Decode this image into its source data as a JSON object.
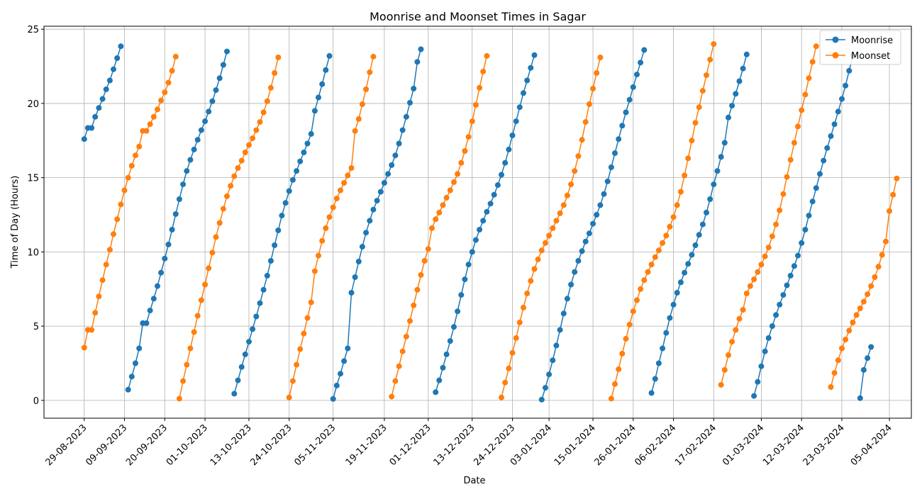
{
  "chart_data": {
    "type": "line",
    "title": "Moonrise and Moonset Times in Sagar",
    "xlabel": "Date",
    "ylabel": "Time of Day (Hours)",
    "x_ticks": [
      "29-08-2023",
      "09-09-2023",
      "20-09-2023",
      "01-10-2023",
      "13-10-2023",
      "24-10-2023",
      "05-11-2023",
      "19-11-2023",
      "01-12-2023",
      "13-12-2023",
      "24-12-2023",
      "03-01-2024",
      "15-01-2024",
      "26-01-2024",
      "06-02-2024",
      "17-02-2024",
      "01-03-2024",
      "12-03-2024",
      "23-03-2024",
      "05-04-2024"
    ],
    "y_ticks": [
      0,
      5,
      10,
      15,
      20,
      25
    ],
    "ylim": [
      -1.2,
      25.2
    ],
    "xlim": [
      "2023-08-18",
      "2024-04-11"
    ],
    "grid": true,
    "legend_position": "top-right",
    "series": [
      {
        "name": "Moonrise",
        "color": "#1f77b4",
        "segments": [
          {
            "start": "2023-08-29",
            "values": [
              17.6,
              18.35,
              18.35,
              19.1,
              19.7,
              20.3,
              20.95,
              21.55,
              22.3,
              23.05,
              23.85
            ]
          },
          {
            "start": "2023-09-10",
            "values": [
              0.72,
              1.6,
              2.5,
              3.5,
              5.2,
              5.2,
              6.05,
              6.85,
              7.7,
              8.6,
              9.55,
              10.5,
              11.5,
              12.55,
              13.55,
              14.55,
              15.45,
              16.2,
              16.9,
              17.55,
              18.2,
              18.8,
              19.45,
              20.15,
              20.9,
              21.7,
              22.6,
              23.5
            ]
          },
          {
            "start": "2023-10-09",
            "values": [
              0.45,
              1.35,
              2.25,
              3.1,
              3.95,
              4.8,
              5.65,
              6.55,
              7.45,
              8.4,
              9.4,
              10.45,
              11.45,
              12.45,
              13.3,
              14.1,
              14.85,
              15.45,
              16.1,
              16.7,
              17.3,
              17.95,
              19.5,
              20.4,
              21.3,
              22.25,
              23.2
            ]
          },
          {
            "start": "2023-11-05",
            "values": [
              0.1,
              1.0,
              1.8,
              2.65,
              3.5,
              7.25,
              8.3,
              9.35,
              10.35,
              11.3,
              12.1,
              12.85,
              13.45,
              14.05,
              14.65,
              15.25,
              15.85,
              16.5,
              17.3,
              18.2,
              19.1,
              20.05,
              21.0,
              22.8,
              23.65
            ]
          },
          {
            "start": "2023-12-03",
            "values": [
              0.55,
              1.35,
              2.2,
              3.1,
              4.0,
              4.95,
              6.0,
              7.1,
              8.15,
              9.15,
              10.0,
              10.8,
              11.5,
              12.1,
              12.7,
              13.25,
              13.85,
              14.5,
              15.2,
              16.0,
              16.9,
              17.85,
              18.8,
              19.75,
              20.7,
              21.55,
              22.4,
              23.25
            ]
          },
          {
            "start": "2024-01-01",
            "values": [
              0.05,
              0.85,
              1.75,
              2.7,
              3.7,
              4.75,
              5.85,
              6.85,
              7.8,
              8.65,
              9.4,
              10.05,
              10.7,
              11.25,
              11.9,
              12.5,
              13.15,
              13.9,
              14.75,
              15.7,
              16.65,
              17.6,
              18.5,
              19.4,
              20.25,
              21.1,
              21.95,
              22.75,
              23.6
            ]
          },
          {
            "start": "2024-01-31",
            "values": [
              0.5,
              1.45,
              2.5,
              3.5,
              4.55,
              5.55,
              6.45,
              7.25,
              7.95,
              8.6,
              9.2,
              9.8,
              10.45,
              11.15,
              11.85,
              12.65,
              13.55,
              14.55,
              15.45,
              16.4,
              17.35,
              19.05,
              19.85,
              20.65,
              21.5,
              22.35,
              23.3
            ]
          },
          {
            "start": "2024-02-28",
            "values": [
              0.3,
              1.25,
              2.3,
              3.3,
              4.2,
              5.0,
              5.75,
              6.45,
              7.1,
              7.75,
              8.4,
              9.05,
              9.75,
              10.6,
              11.5,
              12.45,
              13.4,
              14.3,
              15.25,
              16.15,
              17.0,
              17.8,
              18.6,
              19.45,
              20.3,
              21.2,
              22.2,
              23.2
            ]
          },
          {
            "start": "2024-03-28",
            "values": [
              0.15,
              2.05,
              2.85,
              3.6
            ]
          }
        ]
      },
      {
        "name": "Moonset",
        "color": "#ff7f0e",
        "segments": [
          {
            "start": "2023-08-29",
            "values": [
              3.55,
              4.75,
              4.75,
              5.9,
              7.0,
              8.1,
              9.15,
              10.15,
              11.2,
              12.2,
              13.2,
              14.15,
              15.0,
              15.8,
              16.5,
              17.1,
              18.15,
              18.15,
              18.6,
              19.1,
              19.6,
              20.2,
              20.75,
              21.4,
              22.2,
              23.15
            ]
          },
          {
            "start": "2023-09-24",
            "values": [
              0.12,
              1.3,
              2.4,
              3.5,
              4.6,
              5.7,
              6.75,
              7.8,
              8.9,
              9.95,
              11.0,
              11.95,
              12.9,
              13.75,
              14.45,
              15.1,
              15.65,
              16.15,
              16.7,
              17.2,
              17.65,
              18.2,
              18.75,
              19.4,
              20.15,
              21.05,
              22.05,
              23.1
            ]
          },
          {
            "start": "2023-10-24",
            "values": [
              0.2,
              1.3,
              2.4,
              3.45,
              4.5,
              5.55,
              6.6,
              8.7,
              9.75,
              10.75,
              11.6,
              12.35,
              13.0,
              13.6,
              14.15,
              14.65,
              15.15,
              15.65,
              18.15,
              18.95,
              19.95,
              20.95,
              22.1,
              23.15
            ]
          },
          {
            "start": "2023-11-21",
            "values": [
              0.25,
              1.3,
              2.3,
              3.3,
              4.3,
              5.35,
              6.4,
              7.45,
              8.45,
              9.4,
              10.2,
              11.6,
              12.2,
              12.65,
              13.15,
              13.65,
              14.15,
              14.7,
              15.25,
              16.0,
              16.8,
              17.75,
              18.8,
              19.9,
              21.05,
              22.15,
              23.2
            ]
          },
          {
            "start": "2023-12-21",
            "values": [
              0.2,
              1.2,
              2.15,
              3.2,
              4.2,
              5.25,
              6.25,
              7.2,
              8.05,
              8.85,
              9.5,
              10.1,
              10.6,
              11.1,
              11.6,
              12.1,
              12.6,
              13.15,
              13.8,
              14.55,
              15.45,
              16.45,
              17.55,
              18.75,
              19.95,
              21.0,
              22.05,
              23.1
            ]
          },
          {
            "start": "2024-01-20",
            "values": [
              0.12,
              1.1,
              2.1,
              3.15,
              4.15,
              5.1,
              6.0,
              6.75,
              7.5,
              8.1,
              8.65,
              9.15,
              9.65,
              10.1,
              10.6,
              11.1,
              11.7,
              12.35,
              13.15,
              14.05,
              15.15,
              16.3,
              17.5,
              18.7,
              19.75,
              20.85,
              21.9,
              22.95,
              24.0
            ]
          },
          {
            "start": "2024-02-19",
            "values": [
              1.05,
              2.05,
              3.05,
              3.95,
              4.75,
              5.5,
              6.1,
              7.2,
              7.7,
              8.15,
              8.65,
              9.15,
              9.7,
              10.3,
              11.05,
              11.85,
              12.8,
              13.9,
              15.05,
              16.2,
              17.35,
              18.45,
              19.55,
              20.6,
              21.7,
              22.8,
              23.85
            ]
          },
          {
            "start": "2024-03-20",
            "values": [
              0.9,
              1.85,
              2.7,
              3.5,
              4.1,
              4.7,
              5.25,
              5.75,
              6.2,
              6.65,
              7.15,
              7.7,
              8.3,
              9.0,
              9.8,
              10.7,
              12.75,
              13.85,
              14.95
            ]
          }
        ]
      }
    ]
  }
}
